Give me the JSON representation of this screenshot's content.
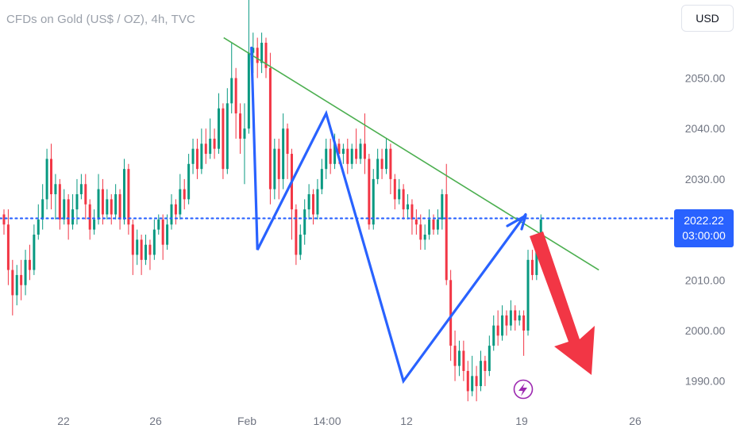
{
  "header": {
    "title": "CFDs on Gold (US$ / OZ), 4h, TVC",
    "currency": "USD"
  },
  "price_tag": {
    "price": "2022.22",
    "countdown": "03:00:00"
  },
  "icons": {
    "event_marker": "lightning-icon"
  },
  "colors": {
    "up": "#089981",
    "down": "#f23645",
    "pattern": "#2962ff",
    "trendline": "#4caf50",
    "arrow": "#f23645",
    "price_line": "#2962ff",
    "marker": "#9c27b0"
  },
  "chart_data": {
    "type": "candlestick",
    "title": "CFDs on Gold (US$ / OZ), 4h, TVC",
    "y_ticks": [
      1990,
      2000,
      2010,
      2020,
      2030,
      2040,
      2050
    ],
    "y_tick_labels": [
      "1990.00",
      "2000.00",
      "2010.00",
      "",
      "2030.00",
      "2040.00",
      "2050.00"
    ],
    "ylim": [
      1986,
      2064
    ],
    "x_tick_labels": [
      "22",
      "26",
      "Feb",
      "14:00",
      "12",
      "19",
      "26"
    ],
    "current_price": 2022.22,
    "candles": [
      [
        2023,
        2021,
        2024,
        2019
      ],
      [
        2021,
        2012,
        2024,
        2009
      ],
      [
        2012,
        2007,
        2014,
        2003
      ],
      [
        2007,
        2011,
        2013,
        2005
      ],
      [
        2011,
        2009,
        2014,
        2006
      ],
      [
        2009,
        2014,
        2016,
        2007
      ],
      [
        2014,
        2012,
        2017,
        2010
      ],
      [
        2012,
        2019,
        2021,
        2011
      ],
      [
        2019,
        2022,
        2025,
        2018
      ],
      [
        2022,
        2026,
        2029,
        2020
      ],
      [
        2026,
        2034,
        2036,
        2024
      ],
      [
        2034,
        2027,
        2037,
        2024
      ],
      [
        2027,
        2029,
        2031,
        2022
      ],
      [
        2029,
        2022,
        2030,
        2020
      ],
      [
        2022,
        2026,
        2028,
        2021
      ],
      [
        2026,
        2021,
        2027,
        2018
      ],
      [
        2021,
        2024,
        2027,
        2020
      ],
      [
        2024,
        2027,
        2030,
        2021
      ],
      [
        2027,
        2029,
        2031,
        2026
      ],
      [
        2029,
        2025,
        2031,
        2022
      ],
      [
        2025,
        2020,
        2026,
        2018
      ],
      [
        2020,
        2022,
        2024,
        2019
      ],
      [
        2022,
        2028,
        2031,
        2021
      ],
      [
        2028,
        2023,
        2030,
        2021
      ],
      [
        2023,
        2026,
        2028,
        2022
      ],
      [
        2026,
        2023,
        2027,
        2021
      ],
      [
        2023,
        2027,
        2029,
        2022
      ],
      [
        2027,
        2022,
        2028,
        2020
      ],
      [
        2022,
        2032,
        2034,
        2021
      ],
      [
        2032,
        2021,
        2033,
        2019
      ],
      [
        2021,
        2015,
        2022,
        2011
      ],
      [
        2015,
        2018,
        2020,
        2013
      ],
      [
        2018,
        2014,
        2019,
        2011
      ],
      [
        2014,
        2017,
        2019,
        2013
      ],
      [
        2017,
        2015,
        2018,
        2012
      ],
      [
        2015,
        2020,
        2022,
        2014
      ],
      [
        2020,
        2022,
        2023,
        2019
      ],
      [
        2022,
        2017,
        2023,
        2014
      ],
      [
        2017,
        2021,
        2023,
        2016
      ],
      [
        2021,
        2025,
        2027,
        2020
      ],
      [
        2025,
        2023,
        2026,
        2021
      ],
      [
        2023,
        2028,
        2031,
        2022
      ],
      [
        2028,
        2026,
        2030,
        2024
      ],
      [
        2026,
        2033,
        2035,
        2025
      ],
      [
        2033,
        2036,
        2038,
        2031
      ],
      [
        2036,
        2032,
        2038,
        2030
      ],
      [
        2032,
        2037,
        2040,
        2031
      ],
      [
        2037,
        2035,
        2040,
        2033
      ],
      [
        2035,
        2038,
        2042,
        2034
      ],
      [
        2038,
        2036,
        2040,
        2034
      ],
      [
        2036,
        2044,
        2047,
        2035
      ],
      [
        2044,
        2032,
        2045,
        2030
      ],
      [
        2032,
        2045,
        2048,
        2031
      ],
      [
        2045,
        2050,
        2057,
        2043
      ],
      [
        2050,
        2043,
        2052,
        2038
      ],
      [
        2043,
        2038,
        2045,
        2035
      ],
      [
        2038,
        2040,
        2045,
        2029
      ],
      [
        2040,
        2055,
        2066,
        2039
      ],
      [
        2055,
        2056,
        2059,
        2051
      ],
      [
        2056,
        2053,
        2058,
        2050
      ],
      [
        2053,
        2057,
        2059,
        2051
      ],
      [
        2057,
        2052,
        2058,
        2050
      ],
      [
        2052,
        2028,
        2055,
        2025
      ],
      [
        2028,
        2036,
        2038,
        2026
      ],
      [
        2036,
        2030,
        2038,
        2026
      ],
      [
        2030,
        2040,
        2043,
        2028
      ],
      [
        2040,
        2035,
        2041,
        2030
      ],
      [
        2035,
        2024,
        2036,
        2018
      ],
      [
        2024,
        2015,
        2025,
        2013
      ],
      [
        2015,
        2019,
        2021,
        2014
      ],
      [
        2019,
        2024,
        2026,
        2017
      ],
      [
        2024,
        2027,
        2029,
        2022
      ],
      [
        2027,
        2023,
        2028,
        2021
      ],
      [
        2023,
        2028,
        2030,
        2022
      ],
      [
        2028,
        2032,
        2034,
        2027
      ],
      [
        2032,
        2036,
        2038,
        2030
      ],
      [
        2036,
        2033,
        2038,
        2031
      ],
      [
        2033,
        2037,
        2039,
        2032
      ],
      [
        2037,
        2035,
        2038,
        2033
      ],
      [
        2035,
        2036,
        2037,
        2033
      ],
      [
        2036,
        2033,
        2038,
        2031
      ],
      [
        2033,
        2036,
        2037,
        2032
      ],
      [
        2036,
        2034,
        2040,
        2033
      ],
      [
        2034,
        2037,
        2038,
        2033
      ],
      [
        2037,
        2034,
        2043,
        2031
      ],
      [
        2034,
        2021,
        2035,
        2020
      ],
      [
        2021,
        2030,
        2032,
        2020
      ],
      [
        2030,
        2034,
        2036,
        2029
      ],
      [
        2034,
        2032,
        2036,
        2030
      ],
      [
        2032,
        2036,
        2038,
        2031
      ],
      [
        2036,
        2030,
        2037,
        2027
      ],
      [
        2030,
        2026,
        2031,
        2024
      ],
      [
        2026,
        2028,
        2030,
        2025
      ],
      [
        2028,
        2024,
        2029,
        2022
      ],
      [
        2024,
        2025,
        2027,
        2022
      ],
      [
        2025,
        2022,
        2026,
        2019
      ],
      [
        2022,
        2021,
        2024,
        2019
      ],
      [
        2021,
        2018,
        2023,
        2016
      ],
      [
        2018,
        2019,
        2021,
        2016
      ],
      [
        2019,
        2022,
        2024,
        2018
      ],
      [
        2022,
        2020,
        2023,
        2019
      ],
      [
        2020,
        2022,
        2024,
        2019
      ],
      [
        2022,
        2027,
        2028,
        2020
      ],
      [
        2027,
        2010,
        2033,
        2009
      ],
      [
        2010,
        1997,
        2012,
        1994
      ],
      [
        1997,
        1993,
        2000,
        1990
      ],
      [
        1993,
        1996,
        1998,
        1991
      ],
      [
        1996,
        1992,
        1998,
        1990
      ],
      [
        1992,
        1988,
        1994,
        1986
      ],
      [
        1988,
        1991,
        1995,
        1987
      ],
      [
        1991,
        1989,
        1993,
        1986
      ],
      [
        1989,
        1994,
        1996,
        1988
      ],
      [
        1994,
        1992,
        1995,
        1989
      ],
      [
        1992,
        1997,
        1999,
        1991
      ],
      [
        1997,
        2001,
        2003,
        1996
      ],
      [
        2001,
        1999,
        2004,
        1997
      ],
      [
        1999,
        2003,
        2005,
        1998
      ],
      [
        2003,
        2001,
        2004,
        1999
      ],
      [
        2001,
        2004,
        2006,
        2000
      ],
      [
        2004,
        2002,
        2005,
        2000
      ],
      [
        2002,
        2003,
        2004,
        2001
      ],
      [
        2003,
        2000,
        2004,
        1995
      ],
      [
        2000,
        2014,
        2016,
        1999
      ],
      [
        2014,
        2011,
        2016,
        2010
      ],
      [
        2011,
        2017,
        2019,
        2010
      ],
      [
        2017,
        2022,
        2023,
        2016
      ]
    ],
    "candle_format": "[open, close, high, low]",
    "annotations": {
      "zigzag": [
        [
          53,
          2056
        ],
        [
          59,
          2016
        ],
        [
          75,
          2043
        ],
        [
          93,
          1990
        ],
        [
          103,
          2023
        ]
      ],
      "trendline": [
        [
          53,
          2058
        ],
        [
          120,
          2012
        ]
      ],
      "forecast_arrow": {
        "from": [
          104,
          2018
        ],
        "to": [
          115,
          1992
        ]
      }
    }
  }
}
